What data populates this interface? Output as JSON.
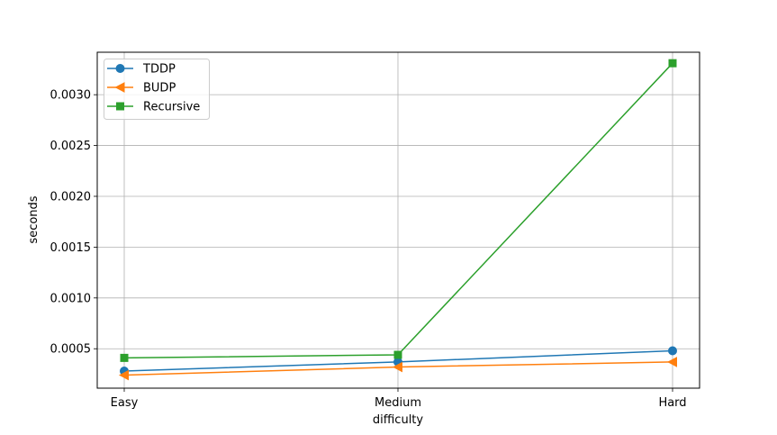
{
  "chart_data": {
    "type": "line",
    "title": "",
    "xlabel": "difficulty",
    "ylabel": "seconds",
    "categories": [
      "Easy",
      "Medium",
      "Hard"
    ],
    "yticks": [
      0.0005,
      0.001,
      0.0015,
      0.002,
      0.0025,
      0.003
    ],
    "ytick_labels": [
      "0.0005",
      "0.0010",
      "0.0015",
      "0.0020",
      "0.0025",
      "0.0030"
    ],
    "ylim": [
      0.000112,
      0.003418
    ],
    "grid": true,
    "legend_position": "top-left",
    "series": [
      {
        "name": "TDDP",
        "color": "#1f77b4",
        "marker": "circle",
        "values": [
          0.00028,
          0.00037,
          0.00048
        ]
      },
      {
        "name": "BUDP",
        "color": "#ff7f0e",
        "marker": "triangle-left",
        "values": [
          0.00024,
          0.00032,
          0.00037
        ]
      },
      {
        "name": "Recursive",
        "color": "#2ca02c",
        "marker": "square",
        "values": [
          0.00041,
          0.00044,
          0.00331
        ]
      }
    ]
  }
}
